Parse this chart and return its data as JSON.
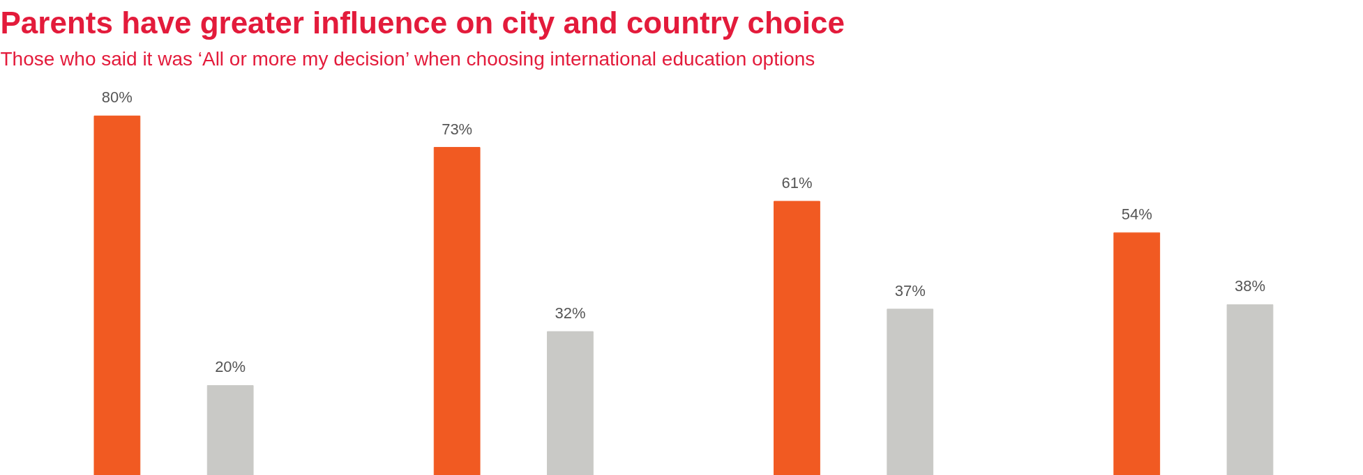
{
  "chart_data": {
    "type": "bar",
    "title": "Parents have greater influence on city and country choice",
    "subtitle": "Those who said it was ‘All or more my decision’ when choosing international education options",
    "categories": [
      null,
      null,
      null,
      null
    ],
    "series": [
      {
        "color": "#f15a22",
        "values": [
          80,
          73,
          61,
          54
        ],
        "value_labels": [
          "80%",
          "73%",
          "61%",
          "54%"
        ]
      },
      {
        "color": "#c9c9c6",
        "values": [
          20,
          32,
          37,
          38
        ],
        "value_labels": [
          "20%",
          "32%",
          "37%",
          "38%"
        ]
      }
    ],
    "tick_labels": false
  }
}
